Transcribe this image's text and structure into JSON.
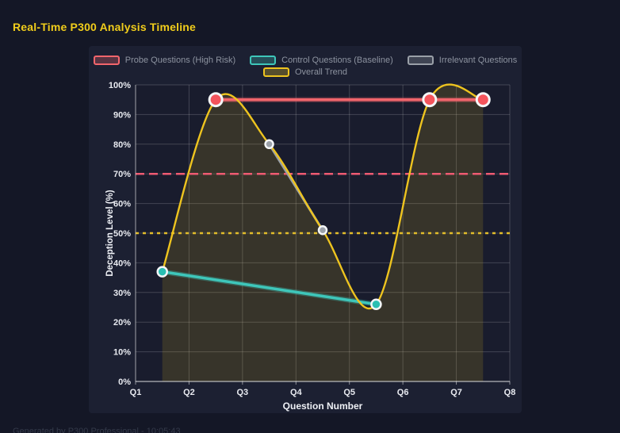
{
  "title": "Real-Time P300 Analysis Timeline",
  "footer": "Generated by P300 Professional - 10:05:43",
  "colors": {
    "page_bg": "#141726",
    "panel_bg": "#1c2032",
    "plot_bg": "#191c2d",
    "grid": "rgba(255,255,255,0.18)",
    "axis": "rgba(255,255,255,0.5)",
    "title_text": "#f1cd1b",
    "tick_text": "#e8eaf0",
    "axis_title_text": "#eef0f5",
    "legend_text": "#8d93a0",
    "footer_text": "#343a4a",
    "marker_ring": "#f4f6f8"
  },
  "chart_data": {
    "type": "line",
    "title": "Real-Time P300 Analysis Timeline",
    "xlabel": "Question Number",
    "ylabel": "Deception Level (%)",
    "x_range": [
      1,
      8
    ],
    "ylim": [
      0,
      100
    ],
    "x_ticks": [
      "Q1",
      "Q2",
      "Q3",
      "Q4",
      "Q5",
      "Q6",
      "Q7",
      "Q8"
    ],
    "y_tick_values": [
      0,
      10,
      20,
      30,
      40,
      50,
      60,
      70,
      80,
      90,
      100
    ],
    "y_tick_labels": [
      "0%",
      "10%",
      "20%",
      "30%",
      "40%",
      "50%",
      "60%",
      "70%",
      "80%",
      "90%",
      "100%"
    ],
    "grid": true,
    "legend_position": "top",
    "series": [
      {
        "name": "Probe Questions (High Risk)",
        "color": "#f2656c",
        "marker_color": "#f4545c",
        "x": [
          2.5,
          6.5,
          7.5
        ],
        "y": [
          95,
          95,
          95
        ],
        "line_width": 3.5,
        "marker_r": 8,
        "smooth": false,
        "fill": false
      },
      {
        "name": "Control Questions (Baseline)",
        "color": "#3ec6ba",
        "marker_color": "#2abfb2",
        "x": [
          1.5,
          5.5
        ],
        "y": [
          37,
          26
        ],
        "line_width": 3.5,
        "marker_r": 6,
        "smooth": false,
        "fill": false
      },
      {
        "name": "Irrelevant Questions",
        "color": "#9aa0a8",
        "marker_color": "#9ba1a9",
        "x": [
          3.5,
          4.5
        ],
        "y": [
          80,
          51
        ],
        "line_width": 3,
        "marker_r": 5,
        "smooth": false,
        "fill": false
      },
      {
        "name": "Overall Trend",
        "color": "#eec41f",
        "marker_color": "#eec41f",
        "x": [
          1.5,
          2.5,
          3.5,
          4.5,
          5.5,
          6.5,
          7.5
        ],
        "y": [
          37,
          95,
          80,
          51,
          26,
          95,
          95
        ],
        "line_width": 2.4,
        "marker_r": 0,
        "smooth": true,
        "fill": true,
        "fill_color": "rgba(238,196,31,0.14)"
      }
    ],
    "thresholds": [
      {
        "name": "high-risk-threshold",
        "y": 70,
        "color": "#ee5a72",
        "style": "dashed",
        "width": 2.5
      },
      {
        "name": "baseline-threshold",
        "y": 50,
        "color": "#e2bd2a",
        "style": "dotted",
        "width": 2.5
      }
    ]
  }
}
